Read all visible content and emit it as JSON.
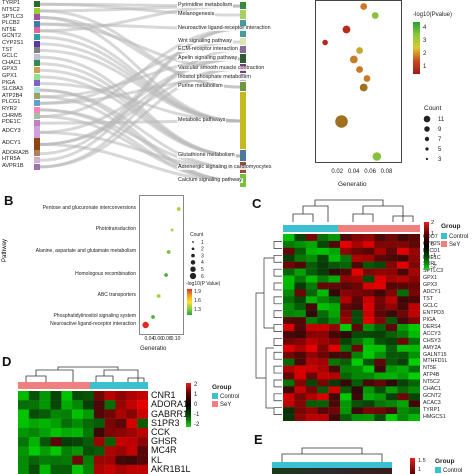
{
  "panelA": {
    "genes": [
      "TYRP1",
      "NT5C2",
      "SPTLC3",
      "PLCB2",
      "NT5E",
      "GCNT2",
      "CYP2S1",
      "TST",
      "GCLC",
      "CHAC1",
      "GPX3",
      "GPX1",
      "PIGA",
      "SLC8A3",
      "ATP2B4",
      "PLCG1",
      "RYR2",
      "CHRM5",
      "PDE1C",
      "ADCY3",
      "ADCY1",
      "ADORA2B",
      "HTR5A",
      "AVPR1B"
    ],
    "pathways": [
      "Pyrimidine metabolism",
      "Melanogenesis",
      "Neuroactive ligand-receptor interaction",
      "Wnt signaling pathway",
      "ECM-receptor interaction",
      "Apelin signaling pathway",
      "Vascular smooth muscle contraction",
      "Inositol phosphate metabolism",
      "Purine metabolism",
      "Metabolic pathways",
      "Glutathione metabolism",
      "Adrenergic signaling in cardiomyocytes",
      "Calcium signaling pathway"
    ],
    "pathway_colors": [
      "#3a8a3e",
      "#a8d060",
      "#4a9a9a",
      "#d8e8b0",
      "#8a6a9a",
      "#2e5c2e",
      "#7a3a7a",
      "#c8a8d0",
      "#6a9a3a",
      "#c8b820",
      "#4a7a9a",
      "#9a4a3a",
      "#78c040"
    ],
    "gene_colors": [
      "#2a6a2a",
      "#9acd32",
      "#a050a0",
      "#3a7ab0",
      "#e060a0",
      "#30a0a0",
      "#5a3aa0",
      "#808080",
      "#c0c0e0",
      "#2e8b57",
      "#d0a050",
      "#90e090",
      "#8060c0",
      "#b0e0e6",
      "#a0a060",
      "#60a0d0",
      "#ff80c0",
      "#a0c0a0",
      "#c080c0",
      "#d0a0e0",
      "#8b4513",
      "#b08060",
      "#d0b0d0",
      "#a070b0"
    ],
    "legend_title": "-log10(Pvalue)",
    "legend_ticks": [
      "4",
      "3",
      "2",
      "1"
    ],
    "count_title": "Count",
    "count_ticks": [
      "11",
      "9",
      "7",
      "5",
      "3"
    ],
    "xlabel": "Generatio",
    "xticks": [
      "0.02",
      "0.04",
      "0.06",
      "0.08"
    ]
  },
  "panelB": {
    "letter": "B",
    "ylabel": "Pathway",
    "xlabel": "Generatio",
    "xticks": [
      "0.04",
      "0.06",
      "0.08",
      "0.10"
    ],
    "count_title": "Count",
    "count_ticks": [
      "1",
      "2",
      "3",
      "4",
      "5",
      "6"
    ],
    "legend_title": "-log10(P Value)",
    "legend_ticks": [
      "1.9",
      "1.6",
      "1.3"
    ]
  },
  "panelC": {
    "letter": "C",
    "group_title": "Group",
    "groups": [
      "Control",
      "SeY"
    ],
    "scale_ticks": [
      "2",
      "1",
      "0",
      "-1",
      "-2"
    ],
    "genes": [
      "CDO7",
      "CYP2S1",
      "PLCD1",
      "PDE1C",
      "SRRL",
      "SPTLC3",
      "GPX1",
      "GPX3",
      "ADCY1",
      "TST",
      "GCLC",
      "ENTPD3",
      "PIGA",
      "DERS4",
      "ACCY3",
      "CHSY3",
      "AMY2A",
      "GALNT15",
      "MTHFD1L",
      "NT5E",
      "ATP4B",
      "NT5C2",
      "CHAC1",
      "GCNT2",
      "ACAC3",
      "TYRP1",
      "HMGCS1"
    ]
  },
  "panelD": {
    "letter": "D",
    "group_title": "Group",
    "groups": [
      "Control",
      "SeY"
    ],
    "scale_ticks": [
      "2",
      "1",
      "0",
      "-1",
      "-2"
    ],
    "genes": [
      "CNR1",
      "ADORA1",
      "GABRR1",
      "S1PR3",
      "CCK",
      "GHSR",
      "MC4R",
      "KL",
      "AKR1B1L"
    ]
  },
  "panelE": {
    "letter": "E",
    "group_title": "Group",
    "groups": [
      "Control"
    ],
    "scale_ticks": [
      "1.5",
      "1"
    ]
  },
  "chart_data": [
    {
      "type": "scatter",
      "title": "",
      "xlabel": "Generatio",
      "ylabel": "",
      "xlim": [
        0.0,
        0.095
      ],
      "categories": [
        "Pyrimidine metabolism",
        "Melanogenesis",
        "Neuroactive ligand-receptor interaction",
        "Wnt signaling pathway",
        "ECM-receptor interaction",
        "Apelin signaling pathway",
        "Vascular smooth muscle contraction",
        "Inositol phosphate metabolism",
        "Purine metabolism",
        "Metabolic pathways",
        "Glutathione metabolism",
        "Adrenergic signaling in cardiomyocytes",
        "Calcium signaling pathway"
      ],
      "x": [
        0.052,
        0.066,
        0.031,
        0.005,
        0.047,
        0.04,
        0.047,
        0.056,
        0.052,
        0.025,
        0.068,
        0.064,
        0.075
      ],
      "count": [
        2,
        2,
        3,
        1,
        2,
        3,
        2,
        2,
        3,
        11,
        4,
        3,
        5
      ],
      "neglog10p": [
        1.8,
        2.6,
        1.2,
        0.9,
        1.9,
        1.7,
        1.8,
        1.6,
        1.4,
        1.3,
        2.8,
        3.2,
        4.2
      ]
    },
    {
      "type": "scatter",
      "title": "",
      "xlabel": "Generatio",
      "ylabel": "Pathway",
      "xlim": [
        0.025,
        0.11
      ],
      "categories": [
        "Pentose and glucuronate interconversions",
        "Phototransduction",
        "Alanine, aspartate and glutamate metabolism",
        "Homologous recombination",
        "ABC transporters",
        "Phosphatidylinositol signaling system",
        "Neuroactive ligand-receptor interaction"
      ],
      "x": [
        0.107,
        0.092,
        0.084,
        0.078,
        0.061,
        0.048,
        0.031
      ],
      "count": [
        2,
        1,
        2,
        2,
        2,
        2,
        5
      ],
      "neglog10p": [
        1.35,
        1.4,
        1.45,
        1.5,
        1.4,
        1.55,
        1.9
      ]
    }
  ]
}
